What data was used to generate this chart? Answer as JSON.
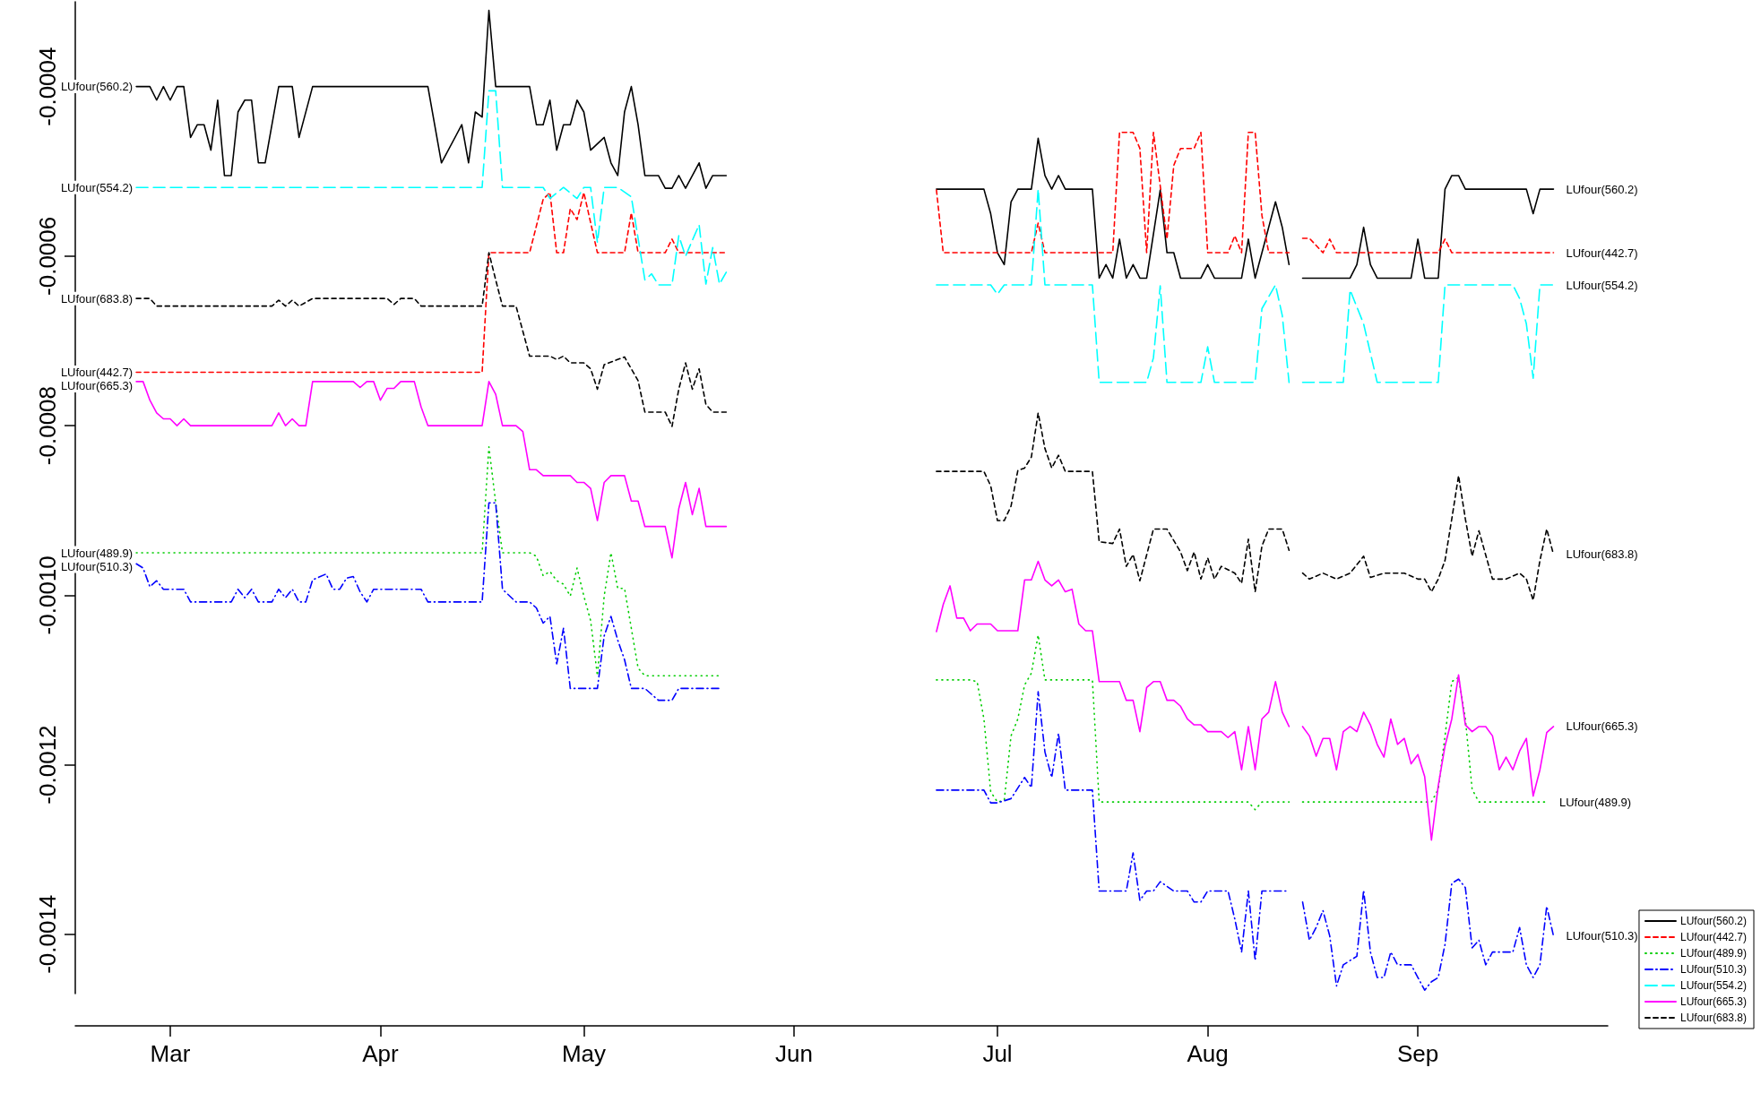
{
  "chart_data": {
    "type": "line",
    "xlim": [
      "--02-15",
      "--09-29"
    ],
    "xticks": [
      {
        "value": "--03-01",
        "label": "Mar"
      },
      {
        "value": "--04-01",
        "label": "Apr"
      },
      {
        "value": "--05-01",
        "label": "May"
      },
      {
        "value": "--06-01",
        "label": "Jun"
      },
      {
        "value": "--07-01",
        "label": "Jul"
      },
      {
        "value": "--08-01",
        "label": "Aug"
      },
      {
        "value": "--09-01",
        "label": "Sep"
      }
    ],
    "ylim": [
      -0.00147,
      -0.0003
    ],
    "yticks": [
      {
        "value": -0.0014,
        "label": "-0.0014"
      },
      {
        "value": -0.0012,
        "label": "-0.0012"
      },
      {
        "value": -0.001,
        "label": "-0.0010"
      },
      {
        "value": -0.0008,
        "label": "-0.0008"
      },
      {
        "value": -0.0006,
        "label": "-0.0006"
      },
      {
        "value": -0.0004,
        "label": "-0.0004"
      }
    ],
    "grid": false,
    "legend": "bottom right",
    "marker": "none",
    "series": [
      {
        "name": "LUfour(560.2)",
        "color": "#000000",
        "line_style": "solid",
        "x": [
          "--02-24",
          "--02-26",
          "--02-27",
          "--02-28",
          "--03-01",
          "--03-02",
          "--03-03",
          "--03-04",
          "--03-05",
          "--03-06",
          "--03-07",
          "--03-08",
          "--03-09",
          "--03-10",
          "--03-11",
          "--03-12",
          "--03-13",
          "--03-14",
          "--03-15",
          "--03-17",
          "--03-19",
          "--03-20",
          "--03-22",
          "--04-08",
          "--04-10",
          "--04-13",
          "--04-14",
          "--04-15",
          "--04-16",
          "--04-17",
          "--04-18",
          "--04-23",
          "--04-24",
          "--04-25",
          "--04-26",
          "--04-27",
          "--04-28",
          "--04-29",
          "--04-30",
          "--05-01",
          "--05-02",
          "--05-04",
          "--05-05",
          "--05-06",
          "--05-07",
          "--05-08",
          "--05-09",
          "--05-10",
          "--05-12",
          "--05-13",
          "--05-14",
          "--05-15",
          "--05-16",
          "--05-18",
          "--05-19",
          "--05-20",
          "--05-22",
          "--06-05",
          "--06-22",
          "--06-29",
          "--06-30",
          "--07-01",
          "--07-02",
          "--07-03",
          "--07-04",
          "--07-06",
          "--07-07",
          "--07-08",
          "--07-09",
          "--07-10",
          "--07-11",
          "--07-15",
          "--07-16",
          "--07-17",
          "--07-18",
          "--07-19",
          "--07-20",
          "--07-21",
          "--07-22",
          "--07-23",
          "--07-25",
          "--07-26",
          "--07-27",
          "--07-28",
          "--07-31",
          "--08-01",
          "--08-02",
          "--08-06",
          "--08-07",
          "--08-08",
          "--08-11",
          "--08-12",
          "--08-13",
          "--08-14",
          "--08-15",
          "--08-22",
          "--08-23",
          "--08-24",
          "--08-25",
          "--08-26",
          "--08-31",
          "--09-01",
          "--09-02",
          "--09-04",
          "--09-05",
          "--09-06",
          "--09-07",
          "--09-08",
          "--09-17",
          "--09-18",
          "--09-19",
          "--09-21"
        ],
        "values": [
          -0.0004,
          -0.0004,
          -0.000416,
          -0.0004,
          -0.000416,
          -0.0004,
          -0.0004,
          -0.00046,
          -0.000445,
          -0.000445,
          -0.000475,
          -0.000416,
          -0.000505,
          -0.000505,
          -0.00043,
          -0.000416,
          -0.000416,
          -0.00049,
          -0.00049,
          -0.0004,
          -0.0004,
          -0.00046,
          -0.0004,
          -0.0004,
          -0.00049,
          -0.000445,
          -0.00049,
          -0.00043,
          -0.000436,
          -0.00031,
          -0.0004,
          -0.0004,
          -0.000445,
          -0.000445,
          -0.000416,
          -0.000475,
          -0.000445,
          -0.000445,
          -0.000416,
          -0.00043,
          -0.000475,
          -0.00046,
          -0.00049,
          -0.000505,
          -0.00043,
          -0.0004,
          -0.000445,
          -0.000505,
          -0.000505,
          -0.00052,
          -0.00052,
          -0.000505,
          -0.00052,
          -0.00049,
          -0.00052,
          -0.000505,
          -0.000505,
          null,
          -0.000521,
          -0.000521,
          -0.00055,
          -0.000596,
          -0.00061,
          -0.000536,
          -0.000521,
          -0.000521,
          -0.000461,
          -0.000505,
          -0.000521,
          -0.000505,
          -0.000521,
          -0.000521,
          -0.000626,
          -0.00061,
          -0.000626,
          -0.00058,
          -0.000626,
          -0.00061,
          -0.000626,
          -0.000626,
          -0.000522,
          -0.000596,
          -0.000596,
          -0.000626,
          -0.000626,
          -0.00061,
          -0.000626,
          -0.000626,
          -0.00058,
          -0.000626,
          -0.000536,
          -0.000566,
          -0.00061,
          null,
          -0.000626,
          -0.000626,
          -0.00061,
          -0.000566,
          -0.00061,
          -0.000626,
          -0.000626,
          -0.00058,
          -0.000626,
          -0.000626,
          -0.000521,
          -0.000505,
          -0.000505,
          -0.000521,
          -0.000521,
          -0.00055,
          -0.000521,
          -0.000521
        ]
      },
      {
        "name": "LUfour(442.7)",
        "color": "#ff0000",
        "line_style": "dashed",
        "x": [
          "--02-24",
          "--04-16",
          "--04-17",
          "--04-23",
          "--04-25",
          "--04-26",
          "--04-27",
          "--04-28",
          "--04-29",
          "--04-30",
          "--05-01",
          "--05-03",
          "--05-07",
          "--05-08",
          "--05-09",
          "--05-13",
          "--05-14",
          "--05-15",
          "--05-22",
          "--06-05",
          "--06-22",
          "--06-23",
          "--07-06",
          "--07-07",
          "--07-08",
          "--07-18",
          "--07-19",
          "--07-20",
          "--07-21",
          "--07-22",
          "--07-23",
          "--07-24",
          "--07-25",
          "--07-26",
          "--07-27",
          "--07-28",
          "--07-30",
          "--07-31",
          "--08-01",
          "--08-04",
          "--08-05",
          "--08-06",
          "--08-07",
          "--08-08",
          "--08-09",
          "--08-10",
          "--08-13",
          "--08-14",
          "--08-15",
          "--08-16",
          "--08-18",
          "--08-19",
          "--08-20",
          "--09-04",
          "--09-05",
          "--09-06",
          "--09-21"
        ],
        "values": [
          -0.000737,
          -0.000737,
          -0.000596,
          -0.000596,
          -0.000533,
          -0.000525,
          -0.000596,
          -0.000596,
          -0.000544,
          -0.000557,
          -0.000525,
          -0.000596,
          -0.000596,
          -0.000549,
          -0.000596,
          -0.000596,
          -0.00058,
          -0.000596,
          -0.000596,
          null,
          -0.000522,
          -0.000596,
          -0.000596,
          -0.000561,
          -0.000596,
          -0.000596,
          -0.000454,
          -0.000454,
          -0.000454,
          -0.000473,
          -0.000596,
          -0.000454,
          -0.000517,
          -0.00058,
          -0.000493,
          -0.000473,
          -0.000473,
          -0.000454,
          -0.000596,
          -0.000596,
          -0.000576,
          -0.000596,
          -0.000454,
          -0.000454,
          -0.000552,
          -0.000596,
          -0.000596,
          null,
          -0.000579,
          -0.000579,
          -0.000596,
          -0.00058,
          -0.000596,
          -0.000596,
          -0.00058,
          -0.000596,
          -0.000596
        ]
      },
      {
        "name": "LUfour(489.9)",
        "color": "#00cd00",
        "line_style": "dotted",
        "x": [
          "--02-24",
          "--04-16",
          "--04-17",
          "--04-18",
          "--04-19",
          "--04-23",
          "--04-24",
          "--04-25",
          "--04-26",
          "--04-27",
          "--04-28",
          "--04-29",
          "--04-30",
          "--05-01",
          "--05-02",
          "--05-03",
          "--05-04",
          "--05-05",
          "--05-06",
          "--05-07",
          "--05-08",
          "--05-09",
          "--05-10",
          "--05-21",
          "--06-05",
          "--06-22",
          "--06-27",
          "--06-28",
          "--06-29",
          "--06-30",
          "--07-01",
          "--07-02",
          "--07-03",
          "--07-04",
          "--07-05",
          "--07-06",
          "--07-07",
          "--07-08",
          "--07-15",
          "--07-16",
          "--08-07",
          "--08-08",
          "--08-09",
          "--08-13",
          "--08-14",
          "--08-15",
          "--09-03",
          "--09-04",
          "--09-05",
          "--09-06",
          "--09-07",
          "--09-08",
          "--09-09",
          "--09-10",
          "--09-20"
        ],
        "values": [
          -0.00095,
          -0.00095,
          -0.000825,
          -0.000891,
          -0.00095,
          -0.00095,
          -0.000954,
          -0.000977,
          -0.000972,
          -0.000983,
          -0.000987,
          -0.001001,
          -0.000968,
          -0.001001,
          -0.00103,
          -0.001095,
          -0.001001,
          -0.00095,
          -0.000992,
          -0.000992,
          -0.001039,
          -0.001086,
          -0.001095,
          -0.001095,
          null,
          -0.0011,
          -0.0011,
          -0.001102,
          -0.001146,
          -0.001232,
          -0.001244,
          -0.001242,
          -0.001166,
          -0.001146,
          -0.001106,
          -0.001092,
          -0.001047,
          -0.0011,
          -0.0011,
          -0.001244,
          -0.001244,
          -0.001253,
          -0.001244,
          -0.001244,
          null,
          -0.001244,
          -0.001244,
          -0.001229,
          -0.001166,
          -0.001102,
          -0.001097,
          -0.001146,
          -0.001229,
          -0.001244,
          -0.001244
        ]
      },
      {
        "name": "LUfour(510.3)",
        "color": "#0000ff",
        "line_style": "dashdot",
        "x": [
          "--02-24",
          "--02-25",
          "--02-26",
          "--02-27",
          "--02-28",
          "--03-03",
          "--03-04",
          "--03-10",
          "--03-11",
          "--03-12",
          "--03-13",
          "--03-14",
          "--03-16",
          "--03-17",
          "--03-18",
          "--03-19",
          "--03-20",
          "--03-21",
          "--03-22",
          "--03-24",
          "--03-25",
          "--03-26",
          "--03-27",
          "--03-28",
          "--03-29",
          "--03-30",
          "--03-31",
          "--04-07",
          "--04-08",
          "--04-16",
          "--04-17",
          "--04-18",
          "--04-19",
          "--04-21",
          "--04-23",
          "--04-24",
          "--04-25",
          "--04-26",
          "--04-27",
          "--04-28",
          "--04-29",
          "--05-03",
          "--05-04",
          "--05-05",
          "--05-06",
          "--05-07",
          "--05-08",
          "--05-10",
          "--05-12",
          "--05-14",
          "--05-15",
          "--05-21",
          "--06-05",
          "--06-22",
          "--06-29",
          "--06-30",
          "--07-01",
          "--07-03",
          "--07-05",
          "--07-06",
          "--07-07",
          "--07-08",
          "--07-09",
          "--07-10",
          "--07-11",
          "--07-15",
          "--07-16",
          "--07-20",
          "--07-21",
          "--07-22",
          "--07-23",
          "--07-24",
          "--07-25",
          "--07-27",
          "--07-29",
          "--07-30",
          "--07-31",
          "--08-01",
          "--08-04",
          "--08-05",
          "--08-06",
          "--08-07",
          "--08-08",
          "--08-09",
          "--08-13",
          "--08-14",
          "--08-15",
          "--08-16",
          "--08-17",
          "--08-18",
          "--08-19",
          "--08-20",
          "--08-21",
          "--08-23",
          "--08-24",
          "--08-25",
          "--08-26",
          "--08-27",
          "--08-28",
          "--08-29",
          "--08-31",
          "--09-01",
          "--09-02",
          "--09-03",
          "--09-04",
          "--09-05",
          "--09-06",
          "--09-07",
          "--09-08",
          "--09-09",
          "--09-10",
          "--09-11",
          "--09-12",
          "--09-15",
          "--09-16",
          "--09-17",
          "--09-18",
          "--09-19",
          "--09-20",
          "--09-21"
        ],
        "values": [
          -0.000963,
          -0.000968,
          -0.00099,
          -0.000983,
          -0.000993,
          -0.000993,
          -0.001008,
          -0.001008,
          -0.000993,
          -0.001003,
          -0.000993,
          -0.001008,
          -0.001008,
          -0.000993,
          -0.001003,
          -0.000993,
          -0.001008,
          -0.001008,
          -0.000982,
          -0.000975,
          -0.000993,
          -0.000993,
          -0.00098,
          -0.000978,
          -0.000996,
          -0.001008,
          -0.000993,
          -0.000993,
          -0.001008,
          -0.001008,
          -0.000891,
          -0.000891,
          -0.000993,
          -0.001008,
          -0.001008,
          -0.001015,
          -0.001033,
          -0.001025,
          -0.001081,
          -0.001039,
          -0.00111,
          -0.00111,
          -0.001048,
          -0.001025,
          -0.001053,
          -0.001076,
          -0.00111,
          -0.00111,
          -0.001124,
          -0.001124,
          -0.00111,
          -0.00111,
          null,
          -0.00123,
          -0.00123,
          -0.001245,
          -0.001245,
          -0.00124,
          -0.001215,
          -0.001227,
          -0.001114,
          -0.001185,
          -0.001215,
          -0.001163,
          -0.00123,
          -0.00123,
          -0.001349,
          -0.001349,
          -0.001304,
          -0.00136,
          -0.001349,
          -0.001349,
          -0.001338,
          -0.001349,
          -0.001349,
          -0.001362,
          -0.001362,
          -0.001349,
          -0.001349,
          -0.001382,
          -0.001421,
          -0.001349,
          -0.001431,
          -0.001349,
          -0.001349,
          null,
          -0.001362,
          -0.001407,
          -0.001392,
          -0.001372,
          -0.001402,
          -0.001461,
          -0.001436,
          -0.001426,
          -0.001348,
          -0.001421,
          -0.001451,
          -0.001451,
          -0.001421,
          -0.001436,
          -0.001436,
          -0.001451,
          -0.001466,
          -0.001456,
          -0.001451,
          -0.001412,
          -0.00134,
          -0.001335,
          -0.001345,
          -0.001416,
          -0.001407,
          -0.001436,
          -0.001421,
          -0.001421,
          -0.001392,
          -0.001436,
          -0.001451,
          -0.001436,
          -0.001367,
          -0.001402
        ]
      },
      {
        "name": "LUfour(554.2)",
        "color": "#00ffff",
        "line_style": "longdash",
        "x": [
          "--02-24",
          "--04-16",
          "--04-17",
          "--04-18",
          "--04-19",
          "--04-25",
          "--04-26",
          "--04-28",
          "--04-30",
          "--05-01",
          "--05-02",
          "--05-03",
          "--05-04",
          "--05-06",
          "--05-08",
          "--05-10",
          "--05-11",
          "--05-12",
          "--05-14",
          "--05-15",
          "--05-16",
          "--05-18",
          "--05-19",
          "--05-20",
          "--05-21",
          "--05-22",
          "--06-05",
          "--06-22",
          "--06-30",
          "--07-01",
          "--07-02",
          "--07-06",
          "--07-07",
          "--07-08",
          "--07-15",
          "--07-16",
          "--07-23",
          "--07-24",
          "--07-25",
          "--07-26",
          "--07-31",
          "--08-01",
          "--08-02",
          "--08-08",
          "--08-09",
          "--08-11",
          "--08-12",
          "--08-13",
          "--08-14",
          "--08-15",
          "--08-21",
          "--08-22",
          "--08-24",
          "--08-26",
          "--09-04",
          "--09-05",
          "--09-15",
          "--09-16",
          "--09-17",
          "--09-18",
          "--09-19",
          "--09-21"
        ],
        "values": [
          -0.000519,
          -0.000519,
          -0.000405,
          -0.000405,
          -0.000519,
          -0.000519,
          -0.000532,
          -0.000519,
          -0.000532,
          -0.000519,
          -0.000519,
          -0.000584,
          -0.000519,
          -0.000519,
          -0.00053,
          -0.000628,
          -0.000621,
          -0.000634,
          -0.000634,
          -0.000576,
          -0.0006,
          -0.000563,
          -0.000633,
          -0.00059,
          -0.000633,
          -0.000619,
          null,
          -0.000634,
          -0.000634,
          -0.000645,
          -0.000634,
          -0.000634,
          -0.000521,
          -0.000634,
          -0.000634,
          -0.000749,
          -0.000749,
          -0.00072,
          -0.000635,
          -0.000749,
          -0.000749,
          -0.000707,
          -0.000749,
          -0.000749,
          -0.000662,
          -0.000634,
          -0.00067,
          -0.000749,
          null,
          -0.000749,
          -0.000749,
          -0.00064,
          -0.00068,
          -0.000749,
          -0.000749,
          -0.000634,
          -0.000634,
          -0.00065,
          -0.00068,
          -0.000744,
          -0.000634,
          -0.000634
        ]
      },
      {
        "name": "LUfour(665.3)",
        "color": "#ff00ff",
        "line_style": "solid",
        "x": [
          "--02-24",
          "--02-25",
          "--02-26",
          "--02-27",
          "--02-28",
          "--03-01",
          "--03-02",
          "--03-03",
          "--03-04",
          "--03-16",
          "--03-17",
          "--03-18",
          "--03-19",
          "--03-20",
          "--03-21",
          "--03-22",
          "--03-28",
          "--03-29",
          "--03-30",
          "--03-31",
          "--04-01",
          "--04-02",
          "--04-03",
          "--04-04",
          "--04-06",
          "--04-07",
          "--04-08",
          "--04-16",
          "--04-17",
          "--04-18",
          "--04-19",
          "--04-21",
          "--04-22",
          "--04-23",
          "--04-24",
          "--04-25",
          "--04-29",
          "--04-30",
          "--05-01",
          "--05-02",
          "--05-03",
          "--05-04",
          "--05-05",
          "--05-07",
          "--05-08",
          "--05-09",
          "--05-10",
          "--05-13",
          "--05-14",
          "--05-15",
          "--05-16",
          "--05-17",
          "--05-18",
          "--05-19",
          "--05-22",
          "--06-05",
          "--06-22",
          "--06-23",
          "--06-24",
          "--06-25",
          "--06-26",
          "--06-27",
          "--06-28",
          "--06-30",
          "--07-01",
          "--07-04",
          "--07-05",
          "--07-06",
          "--07-07",
          "--07-08",
          "--07-09",
          "--07-10",
          "--07-11",
          "--07-12",
          "--07-13",
          "--07-14",
          "--07-15",
          "--07-16",
          "--07-19",
          "--07-20",
          "--07-21",
          "--07-22",
          "--07-23",
          "--07-24",
          "--07-25",
          "--07-26",
          "--07-27",
          "--07-28",
          "--07-29",
          "--07-30",
          "--07-31",
          "--08-01",
          "--08-03",
          "--08-04",
          "--08-05",
          "--08-06",
          "--08-07",
          "--08-08",
          "--08-09",
          "--08-10",
          "--08-11",
          "--08-12",
          "--08-13",
          "--08-14",
          "--08-15",
          "--08-16",
          "--08-17",
          "--08-18",
          "--08-19",
          "--08-20",
          "--08-21",
          "--08-22",
          "--08-23",
          "--08-24",
          "--08-25",
          "--08-26",
          "--08-27",
          "--08-28",
          "--08-29",
          "--08-30",
          "--08-31",
          "--09-01",
          "--09-02",
          "--09-03",
          "--09-04",
          "--09-05",
          "--09-06",
          "--09-07",
          "--09-08",
          "--09-09",
          "--09-10",
          "--09-11",
          "--09-12",
          "--09-13",
          "--09-14",
          "--09-15",
          "--09-16",
          "--09-17",
          "--09-18",
          "--09-19",
          "--09-20",
          "--09-21"
        ],
        "values": [
          -0.000748,
          -0.000748,
          -0.00077,
          -0.000785,
          -0.000792,
          -0.000792,
          -0.0008,
          -0.000792,
          -0.0008,
          -0.0008,
          -0.000785,
          -0.0008,
          -0.000792,
          -0.0008,
          -0.0008,
          -0.000748,
          -0.000748,
          -0.000755,
          -0.000748,
          -0.000748,
          -0.00077,
          -0.000756,
          -0.000756,
          -0.000748,
          -0.000748,
          -0.000778,
          -0.0008,
          -0.0008,
          -0.000748,
          -0.000763,
          -0.0008,
          -0.0008,
          -0.000807,
          -0.000852,
          -0.000852,
          -0.000859,
          -0.000859,
          -0.000867,
          -0.000867,
          -0.000874,
          -0.000912,
          -0.000867,
          -0.000859,
          -0.000859,
          -0.000889,
          -0.000889,
          -0.000919,
          -0.000919,
          -0.000956,
          -0.000898,
          -0.000867,
          -0.000905,
          -0.000874,
          -0.000919,
          -0.000919,
          null,
          -0.001043,
          -0.001011,
          -0.000989,
          -0.001027,
          -0.001027,
          -0.001042,
          -0.001034,
          -0.001034,
          -0.001042,
          -0.001042,
          -0.000982,
          -0.000982,
          -0.00096,
          -0.000982,
          -0.000989,
          -0.000982,
          -0.000996,
          -0.000993,
          -0.001034,
          -0.001042,
          -0.001042,
          -0.001102,
          -0.001102,
          -0.001124,
          -0.001124,
          -0.001161,
          -0.001109,
          -0.001102,
          -0.001102,
          -0.001124,
          -0.001124,
          -0.001131,
          -0.001146,
          -0.001153,
          -0.001153,
          -0.001161,
          -0.001161,
          -0.001168,
          -0.001161,
          -0.001206,
          -0.001155,
          -0.001206,
          -0.001146,
          -0.001138,
          -0.001102,
          -0.001138,
          -0.001155,
          null,
          -0.001155,
          -0.001166,
          -0.00119,
          -0.001169,
          -0.001169,
          -0.001206,
          -0.001161,
          -0.001155,
          -0.001161,
          -0.001138,
          -0.001153,
          -0.001176,
          -0.001191,
          -0.001146,
          -0.001176,
          -0.001169,
          -0.001199,
          -0.001188,
          -0.001214,
          -0.001289,
          -0.001225,
          -0.001178,
          -0.001146,
          -0.001094,
          -0.001153,
          -0.001161,
          -0.001155,
          -0.001155,
          -0.001166,
          -0.001206,
          -0.001191,
          -0.001206,
          -0.001184,
          -0.001169,
          -0.001237,
          -0.001206,
          -0.001162,
          -0.001155
        ]
      },
      {
        "name": "LUfour(683.8)",
        "color": "#000000",
        "line_style": "dashed",
        "x": [
          "--02-24",
          "--02-26",
          "--02-27",
          "--03-16",
          "--03-17",
          "--03-18",
          "--03-19",
          "--03-20",
          "--03-22",
          "--04-02",
          "--04-03",
          "--04-04",
          "--04-06",
          "--04-07",
          "--04-16",
          "--04-17",
          "--04-18",
          "--04-19",
          "--04-21",
          "--04-23",
          "--04-26",
          "--04-27",
          "--04-28",
          "--04-29",
          "--05-01",
          "--05-02",
          "--05-03",
          "--05-04",
          "--05-07",
          "--05-09",
          "--05-10",
          "--05-13",
          "--05-14",
          "--05-15",
          "--05-16",
          "--05-17",
          "--05-18",
          "--05-19",
          "--05-20",
          "--05-22",
          "--06-05",
          "--06-22",
          "--06-29",
          "--06-30",
          "--07-01",
          "--07-02",
          "--07-03",
          "--07-04",
          "--07-05",
          "--07-06",
          "--07-07",
          "--07-08",
          "--07-09",
          "--07-10",
          "--07-11",
          "--07-15",
          "--07-16",
          "--07-18",
          "--07-19",
          "--07-20",
          "--07-21",
          "--07-22",
          "--07-24",
          "--07-26",
          "--07-28",
          "--07-29",
          "--07-30",
          "--07-31",
          "--08-01",
          "--08-02",
          "--08-03",
          "--08-05",
          "--08-06",
          "--08-07",
          "--08-08",
          "--08-09",
          "--08-10",
          "--08-12",
          "--08-13",
          "--08-14",
          "--08-15",
          "--08-16",
          "--08-18",
          "--08-20",
          "--08-22",
          "--08-24",
          "--08-25",
          "--08-27",
          "--08-30",
          "--09-01",
          "--09-02",
          "--09-03",
          "--09-04",
          "--09-05",
          "--09-06",
          "--09-07",
          "--09-08",
          "--09-09",
          "--09-10",
          "--09-12",
          "--09-14",
          "--09-16",
          "--09-17",
          "--09-18",
          "--09-19",
          "--09-20",
          "--09-21"
        ],
        "values": [
          -0.00065,
          -0.00065,
          -0.000659,
          -0.000659,
          -0.000652,
          -0.000659,
          -0.000652,
          -0.000659,
          -0.00065,
          -0.00065,
          -0.000657,
          -0.00065,
          -0.00065,
          -0.000659,
          -0.000659,
          -0.000596,
          -0.000628,
          -0.000659,
          -0.000659,
          -0.000718,
          -0.000718,
          -0.000722,
          -0.000718,
          -0.000726,
          -0.000726,
          -0.000733,
          -0.000757,
          -0.000728,
          -0.000719,
          -0.000747,
          -0.000784,
          -0.000784,
          -0.000801,
          -0.000757,
          -0.000726,
          -0.000757,
          -0.000733,
          -0.000775,
          -0.000784,
          -0.000784,
          null,
          -0.000854,
          -0.000854,
          -0.000871,
          -0.000912,
          -0.000912,
          -0.000895,
          -0.000853,
          -0.00085,
          -0.000837,
          -0.000785,
          -0.000827,
          -0.00085,
          -0.000835,
          -0.000854,
          -0.000854,
          -0.000937,
          -0.000939,
          -0.000922,
          -0.000966,
          -0.000952,
          -0.000983,
          -0.000922,
          -0.000922,
          -0.000949,
          -0.000971,
          -0.000949,
          -0.000981,
          -0.000956,
          -0.000981,
          -0.000966,
          -0.000974,
          -0.000986,
          -0.000934,
          -0.000996,
          -0.000942,
          -0.000922,
          -0.000922,
          -0.000947,
          null,
          -0.000974,
          -0.000981,
          -0.000974,
          -0.000981,
          -0.000974,
          -0.000954,
          -0.000979,
          -0.000974,
          -0.000974,
          -0.000981,
          -0.000981,
          -0.000996,
          -0.000981,
          -0.000959,
          -0.00091,
          -0.000859,
          -0.00091,
          -0.000954,
          -0.000924,
          -0.000981,
          -0.000981,
          -0.000974,
          -0.000981,
          -0.001006,
          -0.000959,
          -0.000922,
          -0.000952
        ]
      }
    ]
  }
}
